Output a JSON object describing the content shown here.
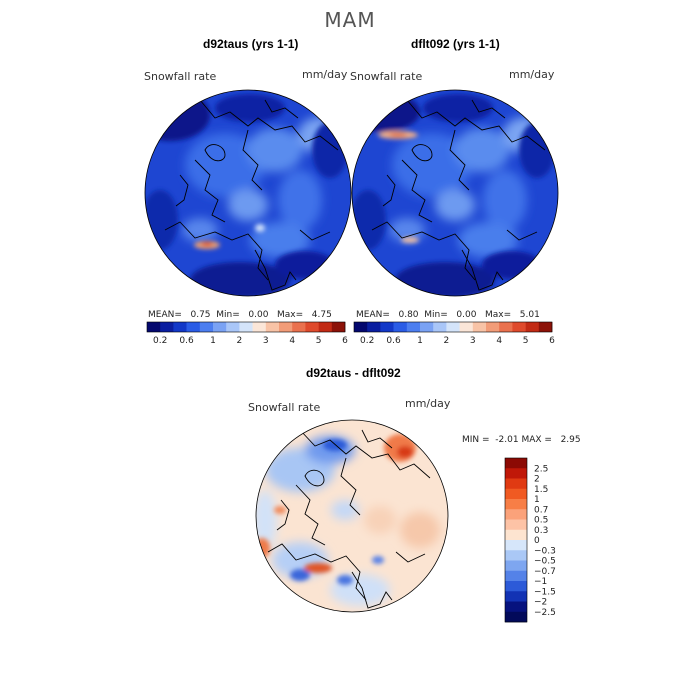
{
  "figure": {
    "title": "MAM"
  },
  "panels": [
    {
      "title": "d92taus (yrs 1-1)",
      "quantity": "Snowfall rate",
      "units": "mm/day",
      "stats": {
        "mean_label": "MEAN=",
        "mean": "0.75",
        "min_label": "Min=",
        "min": "0.00",
        "max_label": "Max=",
        "max": "4.75"
      }
    },
    {
      "title": "dflt092 (yrs 1-1)",
      "quantity": "Snowfall rate",
      "units": "mm/day",
      "stats": {
        "mean_label": "MEAN=",
        "mean": "0.80",
        "min_label": "Min=",
        "min": "0.00",
        "max_label": "Max=",
        "max": "5.01"
      }
    },
    {
      "title": "d92taus - dflt092",
      "quantity": "Snowfall rate",
      "units": "mm/day",
      "stats": {
        "min_label": "MIN =",
        "min": "-2.01",
        "max_label": "MAX =",
        "max": "2.95"
      }
    }
  ],
  "chart_data": [
    {
      "type": "heatmap",
      "projection": "north polar stereographic",
      "title": "d92taus (yrs 1-1)",
      "variable": "Snowfall rate",
      "units": "mm/day",
      "mean": 0.75,
      "min": 0.0,
      "max": 4.75,
      "colorbar": {
        "orientation": "horizontal",
        "tick_labels": [
          "0.2",
          "0.6",
          "1",
          "2",
          "3",
          "4",
          "5",
          "6"
        ],
        "colors": [
          "#04086e",
          "#0a1ea0",
          "#1238c8",
          "#2a5ce6",
          "#4c7ef0",
          "#7aa2f4",
          "#a9c6f8",
          "#d4e4fa",
          "#fbe6d8",
          "#f8c3a6",
          "#f29c78",
          "#ea714e",
          "#df4a2c",
          "#c22a14",
          "#8c1208"
        ]
      }
    },
    {
      "type": "heatmap",
      "projection": "north polar stereographic",
      "title": "dflt092 (yrs 1-1)",
      "variable": "Snowfall rate",
      "units": "mm/day",
      "mean": 0.8,
      "min": 0.0,
      "max": 5.01,
      "colorbar": {
        "orientation": "horizontal",
        "tick_labels": [
          "0.2",
          "0.6",
          "1",
          "2",
          "3",
          "4",
          "5",
          "6"
        ],
        "colors": [
          "#04086e",
          "#0a1ea0",
          "#1238c8",
          "#2a5ce6",
          "#4c7ef0",
          "#7aa2f4",
          "#a9c6f8",
          "#d4e4fa",
          "#fbe6d8",
          "#f8c3a6",
          "#f29c78",
          "#ea714e",
          "#df4a2c",
          "#c22a14",
          "#8c1208"
        ]
      }
    },
    {
      "type": "heatmap",
      "projection": "north polar stereographic",
      "title": "d92taus - dflt092",
      "variable": "Snowfall rate",
      "units": "mm/day",
      "min": -2.01,
      "max": 2.95,
      "colorbar": {
        "orientation": "vertical",
        "tick_labels": [
          "2.5",
          "2",
          "1.5",
          "1",
          "0.7",
          "0.5",
          "0.3",
          "0",
          "−0.3",
          "−0.5",
          "−0.7",
          "−1",
          "−1.5",
          "−2",
          "−2.5"
        ],
        "colors": [
          "#8c0a04",
          "#c01808",
          "#e03a12",
          "#f05a22",
          "#f77e46",
          "#fba27a",
          "#fdc3a6",
          "#fde4d0",
          "#d6e6fa",
          "#aac8f6",
          "#7ea6f0",
          "#5482e8",
          "#2c5ad8",
          "#1232b4",
          "#06127e",
          "#020a5a"
        ]
      }
    }
  ]
}
